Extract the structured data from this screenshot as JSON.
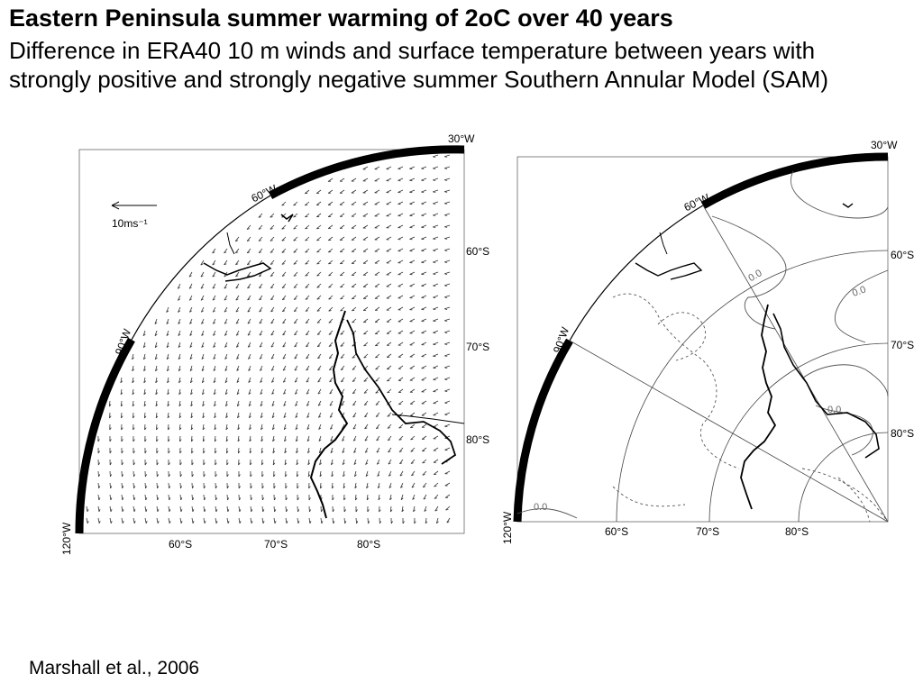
{
  "slide": {
    "title": "Eastern Peninsula summer warming of 2oC over 40 years",
    "subtitle": "Difference in ERA40 10 m winds and surface temperature between years with strongly positive and strongly negative summer Southern Annular Model (SAM)",
    "citation": "Marshall et al., 2006"
  },
  "wind_map": {
    "lon_labels": [
      "30°W",
      "60°W",
      "90°W",
      "120°W"
    ],
    "lat_labels_right": [
      "60°S",
      "70°S",
      "80°S"
    ],
    "lat_labels_bottom": [
      "60°S",
      "70°S",
      "80°S"
    ],
    "scale_label": "10ms⁻¹"
  },
  "temp_map": {
    "lon_labels": [
      "30°W",
      "60°W",
      "90°W",
      "120°W"
    ],
    "lat_labels_right": [
      "60°S",
      "70°S",
      "80°S"
    ],
    "lat_labels_bottom": [
      "60°S",
      "70°S",
      "80°S"
    ],
    "contour_labels": [
      "0.0",
      "0.0",
      "0.0",
      "0.0"
    ]
  }
}
